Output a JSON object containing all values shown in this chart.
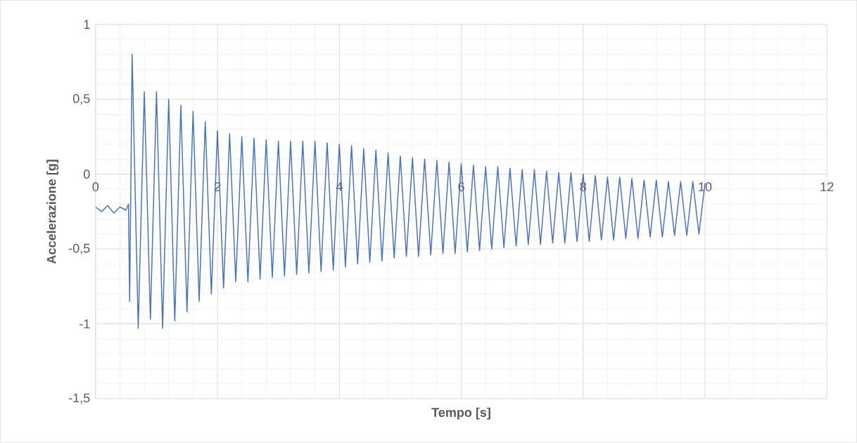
{
  "chart_data": {
    "type": "line",
    "xlabel": "Tempo [s]",
    "ylabel": "Accelerazione [g]",
    "xlim": [
      0,
      12
    ],
    "xticks": [
      0,
      2,
      4,
      6,
      8,
      10,
      12
    ],
    "ylim": [
      -1.5,
      1
    ],
    "yticks": [
      {
        "value": -1.5,
        "label": "-1,5"
      },
      {
        "value": -1,
        "label": "-1"
      },
      {
        "value": -0.5,
        "label": "-0,5"
      },
      {
        "value": 0,
        "label": "0"
      },
      {
        "value": 0.5,
        "label": "0,5"
      },
      {
        "value": 1,
        "label": "1"
      }
    ],
    "grid": true,
    "marker": "none",
    "line_style": "solid",
    "series": [
      {
        "color": "#4472c4",
        "x": [
          0,
          0.1,
          0.2,
          0.3,
          0.4,
          0.5,
          0.54,
          0.56,
          0.6,
          0.7,
          0.8,
          0.9,
          1.0,
          1.1,
          1.2,
          1.3,
          1.4,
          1.5,
          1.6,
          1.7,
          1.8,
          1.9,
          2.0,
          2.1,
          2.2,
          2.3,
          2.4,
          2.5,
          2.6,
          2.7,
          2.8,
          2.9,
          3.0,
          3.1,
          3.2,
          3.3,
          3.4,
          3.5,
          3.6,
          3.7,
          3.8,
          3.9,
          4.0,
          4.1,
          4.2,
          4.3,
          4.4,
          4.5,
          4.6,
          4.7,
          4.8,
          4.9,
          5.0,
          5.1,
          5.2,
          5.3,
          5.4,
          5.5,
          5.6,
          5.7,
          5.8,
          5.9,
          6.0,
          6.1,
          6.2,
          6.3,
          6.4,
          6.5,
          6.6,
          6.7,
          6.8,
          6.9,
          7.0,
          7.1,
          7.2,
          7.3,
          7.4,
          7.5,
          7.6,
          7.7,
          7.8,
          7.9,
          8.0,
          8.1,
          8.2,
          8.3,
          8.4,
          8.5,
          8.6,
          8.7,
          8.8,
          8.9,
          9.0,
          9.1,
          9.2,
          9.3,
          9.4,
          9.5,
          9.6,
          9.7,
          9.8,
          9.9,
          10.0
        ],
        "values": [
          -0.22,
          -0.25,
          -0.21,
          -0.26,
          -0.22,
          -0.24,
          -0.2,
          -0.85,
          0.8,
          -1.03,
          0.55,
          -0.97,
          0.55,
          -1.03,
          0.5,
          -0.98,
          0.46,
          -0.92,
          0.42,
          -0.85,
          0.35,
          -0.8,
          0.29,
          -0.76,
          0.27,
          -0.72,
          0.25,
          -0.72,
          0.24,
          -0.7,
          0.23,
          -0.69,
          0.22,
          -0.68,
          0.22,
          -0.67,
          0.22,
          -0.66,
          0.22,
          -0.65,
          0.21,
          -0.64,
          0.2,
          -0.62,
          0.19,
          -0.6,
          0.17,
          -0.59,
          0.16,
          -0.58,
          0.14,
          -0.56,
          0.12,
          -0.55,
          0.11,
          -0.55,
          0.1,
          -0.54,
          0.09,
          -0.53,
          0.08,
          -0.53,
          0.07,
          -0.52,
          0.06,
          -0.51,
          0.05,
          -0.5,
          0.05,
          -0.49,
          0.04,
          -0.48,
          0.03,
          -0.47,
          0.03,
          -0.47,
          0.02,
          -0.46,
          0.01,
          -0.46,
          0.01,
          -0.45,
          0.0,
          -0.45,
          -0.01,
          -0.44,
          -0.02,
          -0.44,
          -0.02,
          -0.43,
          -0.03,
          -0.43,
          -0.04,
          -0.42,
          -0.04,
          -0.42,
          -0.05,
          -0.41,
          -0.05,
          -0.41,
          -0.05,
          -0.4,
          -0.06
        ]
      }
    ]
  }
}
